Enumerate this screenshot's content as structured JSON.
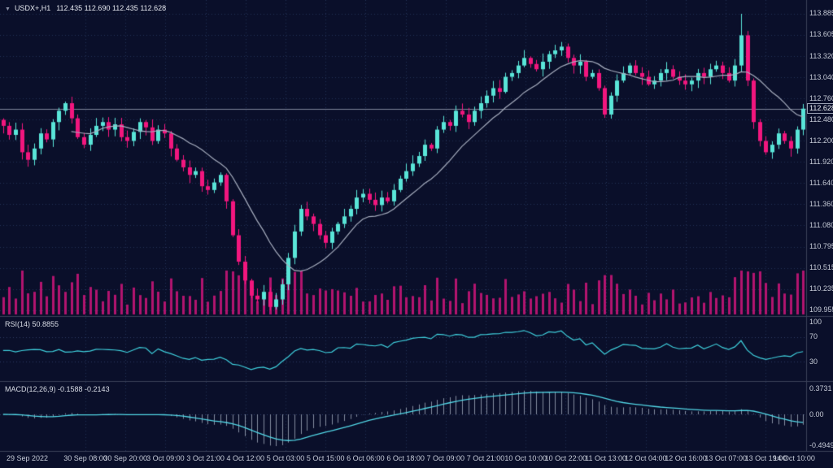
{
  "window": {
    "background": "#0a0f2a"
  },
  "legend": {
    "dropdown_icon": "▼",
    "symbol": "USDX+,H1",
    "ohlc": "112.435 112.690 112.435 112.628"
  },
  "price_tag": {
    "value": "112.628"
  },
  "indicators": {
    "rsi": {
      "label": "RSI(14) 50.8855",
      "levels": [
        {
          "label": "100",
          "value": 100
        },
        {
          "label": "70",
          "value": 70
        },
        {
          "label": "30",
          "value": 30
        }
      ]
    },
    "macd": {
      "label": "MACD(12,26,9) -0.1588 -0.2143",
      "levels": [
        {
          "label": "0.3731",
          "value": 0.3731
        },
        {
          "label": "0.00",
          "value": 0
        },
        {
          "label": "-0.4949",
          "value": -0.4949
        }
      ]
    }
  },
  "chart_data": {
    "type": "candlestick",
    "title": "USDX+,H1",
    "symbol": "USDX+",
    "timeframe": "H1",
    "last_ohlc": {
      "open": 112.435,
      "high": 112.69,
      "low": 112.435,
      "close": 112.628
    },
    "current_price": 112.628,
    "ylim": [
      109.879,
      114.068
    ],
    "y_ticks": [
      "113.885",
      "113.605",
      "113.320",
      "113.040",
      "112.760",
      "112.480",
      "112.200",
      "111.920",
      "111.640",
      "111.360",
      "111.080",
      "110.795",
      "110.515",
      "110.235",
      "109.955"
    ],
    "x_ticks": [
      "29 Sep 2022",
      "30 Sep 08:00",
      "30 Sep 20:00",
      "3 Oct 09:00",
      "3 Oct 21:00",
      "4 Oct 12:00",
      "5 Oct 03:00",
      "5 Oct 15:00",
      "6 Oct 06:00",
      "6 Oct 18:00",
      "7 Oct 09:00",
      "7 Oct 21:00",
      "10 Oct 10:00",
      "10 Oct 22:00",
      "11 Oct 13:00",
      "12 Oct 04:00",
      "12 Oct 16:00",
      "13 Oct 07:00",
      "13 Oct 19:00",
      "14 Oct 10:00"
    ],
    "first_open": 112.48,
    "close": [
      112.4,
      112.28,
      112.35,
      112.05,
      111.95,
      112.1,
      112.3,
      112.22,
      112.45,
      112.6,
      112.7,
      112.5,
      112.25,
      112.15,
      112.28,
      112.4,
      112.45,
      112.35,
      112.42,
      112.25,
      112.2,
      112.32,
      112.45,
      112.38,
      112.2,
      112.35,
      112.3,
      112.1,
      111.95,
      111.85,
      111.75,
      111.8,
      111.6,
      111.55,
      111.65,
      111.75,
      111.4,
      110.95,
      110.6,
      110.35,
      110.15,
      110.1,
      110.2,
      110.0,
      110.1,
      110.3,
      110.65,
      111.0,
      111.3,
      111.2,
      111.1,
      110.95,
      110.85,
      111.0,
      111.1,
      111.2,
      111.3,
      111.45,
      111.5,
      111.42,
      111.35,
      111.45,
      111.4,
      111.55,
      111.7,
      111.8,
      111.9,
      112.0,
      112.15,
      112.1,
      112.35,
      112.45,
      112.4,
      112.6,
      112.55,
      112.45,
      112.6,
      112.7,
      112.8,
      112.9,
      112.85,
      113.05,
      113.1,
      113.2,
      113.3,
      113.22,
      113.15,
      113.25,
      113.35,
      113.4,
      113.45,
      113.3,
      113.2,
      113.25,
      113.05,
      113.1,
      112.9,
      112.55,
      112.8,
      113.0,
      113.1,
      113.2,
      113.1,
      113.05,
      112.95,
      113.0,
      113.1,
      113.15,
      113.05,
      113.0,
      112.95,
      113.0,
      113.1,
      113.05,
      113.15,
      113.2,
      113.1,
      113.0,
      113.2,
      113.6,
      113.0,
      112.45,
      112.2,
      112.05,
      112.15,
      112.3,
      112.2,
      112.1,
      112.35,
      112.628
    ],
    "extremes": {
      "low_index": 43,
      "low": 109.956,
      "high_index": 119,
      "high": 113.885
    },
    "moving_average": {
      "type": "SMA",
      "period": 12
    },
    "rsi": {
      "period": 14,
      "last": 50.8855
    },
    "macd": {
      "fast": 12,
      "slow": 26,
      "signal": 9,
      "last_main": -0.1588,
      "last_signal": -0.2143
    },
    "colors": {
      "up": "#59e5d8",
      "down": "#f2167e",
      "volume": "#b2146f",
      "grid": "#223055",
      "separator": "#3a4158",
      "axis_text": "#c6cbd7",
      "ma": "#a7aebf",
      "rsi_line": "#3fd0dd",
      "macd_hist": "#9aa3b5",
      "macd_signal": "#52d7e6",
      "price_line": "#8a90a4"
    }
  }
}
